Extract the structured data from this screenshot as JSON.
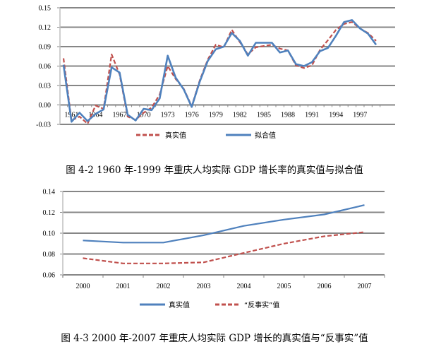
{
  "chart_data": [
    {
      "type": "line",
      "title": "",
      "caption": "图 4-2 1960 年-1999 年重庆人均实际 GDP 增长率的真实值与拟合值",
      "xlabel": "",
      "ylabel": "",
      "x": [
        1960,
        1961,
        1962,
        1963,
        1964,
        1965,
        1966,
        1967,
        1968,
        1969,
        1970,
        1971,
        1972,
        1973,
        1974,
        1975,
        1976,
        1977,
        1978,
        1979,
        1980,
        1981,
        1982,
        1983,
        1984,
        1985,
        1986,
        1987,
        1988,
        1989,
        1990,
        1991,
        1992,
        1993,
        1994,
        1995,
        1996,
        1997,
        1998,
        1999
      ],
      "x_tick_labels": [
        "1961",
        "1964",
        "1967",
        "1970",
        "1973",
        "1976",
        "1979",
        "1982",
        "1985",
        "1988",
        "1991",
        "1994",
        "1997"
      ],
      "y_tick_labels": [
        "0.15",
        "0.12",
        "0.09",
        "0.06",
        "0.03",
        "0.00",
        "-0.03"
      ],
      "ylim": [
        -0.03,
        0.15
      ],
      "grid": true,
      "legend_position": "bottom",
      "series": [
        {
          "name": "真实值",
          "style": "dashed",
          "color": "#c0504d",
          "values": [
            0.072,
            -0.024,
            -0.018,
            -0.029,
            -0.001,
            -0.006,
            0.078,
            0.047,
            -0.018,
            -0.023,
            -0.012,
            -0.004,
            0.016,
            0.06,
            0.04,
            0.025,
            -0.002,
            0.038,
            0.07,
            0.093,
            0.089,
            0.116,
            0.097,
            0.078,
            0.089,
            0.091,
            0.093,
            0.087,
            0.084,
            0.061,
            0.057,
            0.061,
            0.085,
            0.1,
            0.116,
            0.125,
            0.128,
            0.118,
            0.111,
            0.099
          ]
        },
        {
          "name": "拟合值",
          "style": "solid",
          "color": "#4f81bd",
          "values": [
            0.062,
            -0.026,
            -0.012,
            -0.025,
            -0.014,
            -0.007,
            0.058,
            0.05,
            -0.015,
            -0.024,
            -0.006,
            -0.008,
            0.01,
            0.076,
            0.042,
            0.024,
            -0.003,
            0.036,
            0.068,
            0.086,
            0.09,
            0.111,
            0.099,
            0.076,
            0.096,
            0.096,
            0.096,
            0.081,
            0.084,
            0.063,
            0.06,
            0.066,
            0.083,
            0.088,
            0.107,
            0.128,
            0.131,
            0.118,
            0.11,
            0.093
          ]
        }
      ]
    },
    {
      "type": "line",
      "title": "",
      "caption": "图 4-3 2000 年-2007 年重庆人均实际 GDP 增长的真实值与“反事实”值",
      "xlabel": "",
      "ylabel": "",
      "categories": [
        "2000",
        "2001",
        "2002",
        "2003",
        "2004",
        "2005",
        "2006",
        "2007"
      ],
      "y_tick_labels": [
        "0.14",
        "0.12",
        "0.10",
        "0.08",
        "0.06"
      ],
      "ylim": [
        0.06,
        0.14
      ],
      "grid": true,
      "legend_position": "bottom",
      "series": [
        {
          "name": "真实值",
          "style": "solid",
          "color": "#4f81bd",
          "values": [
            0.093,
            0.091,
            0.091,
            0.098,
            0.107,
            0.113,
            0.118,
            0.127
          ]
        },
        {
          "name": "“反事实”值",
          "style": "dashed",
          "color": "#c0504d",
          "values": [
            0.076,
            0.071,
            0.071,
            0.072,
            0.081,
            0.09,
            0.097,
            0.101
          ]
        }
      ]
    }
  ]
}
